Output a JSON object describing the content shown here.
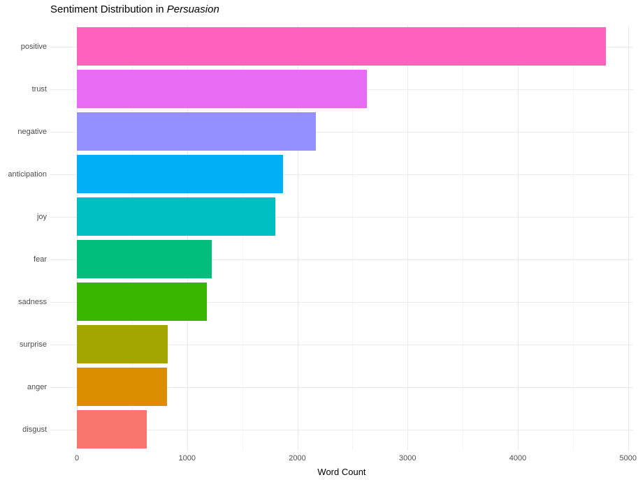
{
  "title": {
    "prefix": "Sentiment Distribution in ",
    "italic": "Persuasion"
  },
  "chart_data": {
    "type": "bar",
    "orientation": "horizontal",
    "title": "Sentiment Distribution in Persuasion",
    "xlabel": "Word Count",
    "ylabel": "",
    "categories": [
      "positive",
      "trust",
      "negative",
      "anticipation",
      "joy",
      "fear",
      "sadness",
      "surprise",
      "anger",
      "disgust"
    ],
    "values": [
      4800,
      2630,
      2170,
      1870,
      1800,
      1225,
      1180,
      825,
      815,
      635
    ],
    "colors": [
      "#FF62BC",
      "#E76BF3",
      "#9590FF",
      "#00B0F6",
      "#00BFC4",
      "#00BF7D",
      "#39B600",
      "#A3A500",
      "#DB8E00",
      "#F8766D"
    ],
    "xlim": [
      0,
      5000
    ],
    "x_ticks": [
      0,
      1000,
      2000,
      3000,
      4000,
      5000
    ],
    "x_minor_ticks": [
      500,
      1500,
      2500,
      3500,
      4500
    ],
    "grid": true,
    "legend": "none",
    "bar_order": "descending"
  },
  "style": {
    "background": "#FFFFFF",
    "grid_major": "#EBEBEB",
    "grid_minor": "#F4F4F4",
    "axis_text_color": "#4D4D4D",
    "axis_title_color": "#000000",
    "title_color": "#000000"
  }
}
